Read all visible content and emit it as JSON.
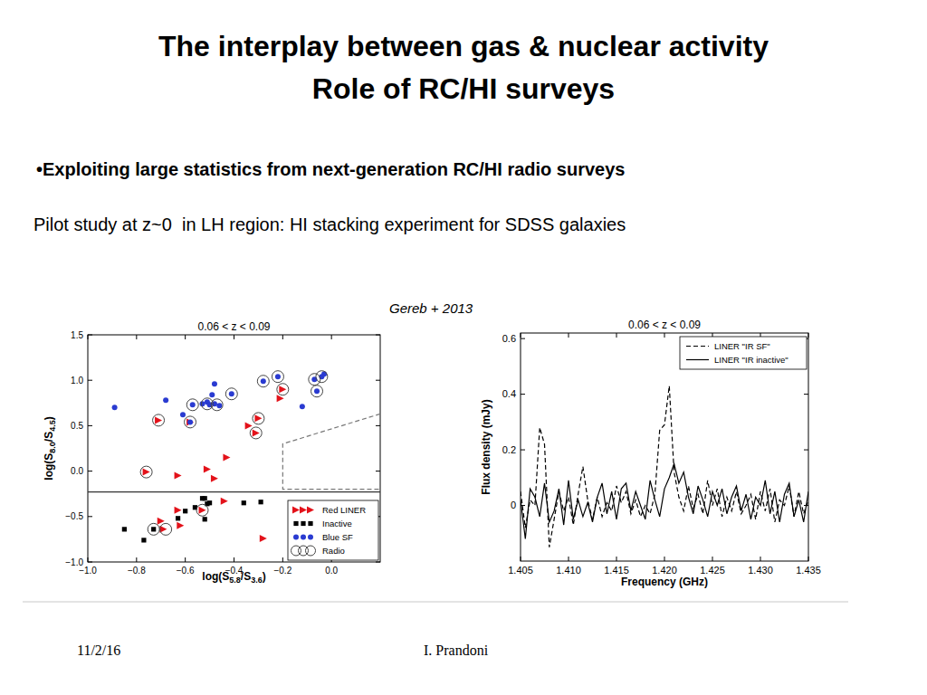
{
  "slide": {
    "title": [
      "The interplay between gas & nuclear activity",
      "Role of RC/HI surveys"
    ],
    "bullet": "•Exploiting large statistics from next-generation RC/HI radio surveys",
    "text": "Pilot study at z~0  in LH region: HI stacking experiment for SDSS galaxies",
    "citation": "Gereb + 2013",
    "footer": {
      "date": "11/2/16",
      "author": "I. Prandoni"
    }
  },
  "chart_data": [
    {
      "type": "scatter",
      "title": "0.06 < z < 0.09",
      "x_label": "log(S5.8/S3.6)",
      "y_label": "log(S8.0/S4.5)",
      "xlim": [
        -1.0,
        0.2
      ],
      "ylim": [
        -1.0,
        1.5
      ],
      "xticks": [
        {
          "value": -1.0,
          "label": "−1.0"
        },
        {
          "value": -0.8,
          "label": "−0.8"
        },
        {
          "value": -0.6,
          "label": "−0.6"
        },
        {
          "value": -0.4,
          "label": "−0.4"
        },
        {
          "value": -0.2,
          "label": "−0.2"
        },
        {
          "value": 0,
          "label": "0.0"
        }
      ],
      "yticks": [
        {
          "value": -1.0,
          "label": "−1.0"
        },
        {
          "value": -0.5,
          "label": "−0.5"
        },
        {
          "value": 0,
          "label": "0.0"
        },
        0.5,
        {
          "value": 1.0,
          "label": "1.0"
        },
        1.5
      ],
      "legend": "lower right",
      "grid": false,
      "series": [
        {
          "name": "Red LINER",
          "color": "#e3121a",
          "marker": "triangle_right",
          "x": [
            -0.71,
            -0.58,
            -0.76,
            -0.63,
            -0.51,
            -0.48,
            -0.43,
            -0.34,
            -0.3,
            -0.31,
            -0.2,
            -0.21,
            -0.63,
            -0.7,
            -0.69,
            -0.62,
            -0.28,
            -0.44,
            -0.53
          ],
          "y": [
            0.56,
            0.54,
            -0.01,
            -0.05,
            0.02,
            -0.08,
            0.15,
            0.5,
            0.58,
            0.42,
            0.9,
            0.8,
            -0.43,
            -0.55,
            -0.64,
            -0.6,
            -0.74,
            -0.33,
            -0.43
          ]
        },
        {
          "name": "Inactive",
          "color": "#000000",
          "marker": "square",
          "x": [
            -0.85,
            -0.77,
            -0.63,
            -0.6,
            -0.56,
            -0.53,
            -0.52,
            -0.51,
            -0.5,
            -0.52,
            -0.36,
            -0.29,
            -0.73
          ],
          "y": [
            -0.64,
            -0.76,
            -0.52,
            -0.44,
            -0.4,
            -0.3,
            -0.3,
            -0.36,
            -0.35,
            -0.53,
            -0.35,
            -0.34,
            -0.64
          ]
        },
        {
          "name": "Blue SF",
          "color": "#2a3bd1",
          "marker": "circle",
          "x": [
            -0.89,
            -0.68,
            -0.61,
            -0.57,
            -0.53,
            -0.51,
            -0.5,
            -0.48,
            -0.48,
            -0.49,
            -0.41,
            -0.28,
            -0.22,
            -0.12,
            -0.07,
            -0.06,
            -0.04,
            -0.03,
            -0.46,
            -0.58
          ],
          "y": [
            0.7,
            0.78,
            0.62,
            0.73,
            0.74,
            0.76,
            0.73,
            0.96,
            0.74,
            0.84,
            0.85,
            0.99,
            1.04,
            0.71,
            1.01,
            0.88,
            1.04,
            1.07,
            0.72,
            0.54
          ]
        },
        {
          "name": "Radio",
          "color": "#444444",
          "marker": "open_circle",
          "x": [
            -0.71,
            -0.58,
            -0.76,
            -0.73,
            -0.68,
            -0.57,
            -0.47,
            -0.41,
            -0.3,
            -0.31,
            -0.2,
            -0.28,
            -0.22,
            -0.07,
            -0.06,
            -0.04,
            -0.53,
            -0.51
          ],
          "y": [
            0.56,
            0.54,
            -0.01,
            -0.64,
            -0.64,
            0.73,
            0.73,
            0.85,
            0.58,
            0.42,
            0.9,
            0.99,
            1.04,
            1.01,
            0.88,
            1.04,
            -0.43,
            0.74
          ]
        }
      ],
      "lines": [
        {
          "x": [
            -1.0,
            0.2
          ],
          "y": [
            -0.23,
            -0.23
          ],
          "color": "#333333",
          "line_style": "solid"
        },
        {
          "x": [
            0.2,
            -0.2,
            -0.2,
            0.2
          ],
          "y": [
            0.63,
            0.3,
            -0.2,
            -0.2
          ],
          "color": "#777777",
          "line_style": "dashed"
        }
      ]
    },
    {
      "type": "line",
      "title": "0.06 < z < 0.09",
      "x_label": "Frequency (GHz)",
      "y_label": "Flux density (mJy)",
      "xlim": [
        1.405,
        1.435
      ],
      "ylim": [
        -0.2,
        0.62
      ],
      "xticks": [
        1.405,
        {
          "value": 1.41,
          "label": "1.410"
        },
        1.415,
        {
          "value": 1.42,
          "label": "1.420"
        },
        1.425,
        {
          "value": 1.43,
          "label": "1.430"
        },
        1.435
      ],
      "yticks": [
        0,
        0.2,
        0.4,
        0.6
      ],
      "legend": "upper right",
      "grid": false,
      "x": [
        1.405,
        1.4055,
        1.406,
        1.4065,
        1.407,
        1.4075,
        1.408,
        1.4085,
        1.409,
        1.4095,
        1.41,
        1.4105,
        1.411,
        1.4115,
        1.412,
        1.4125,
        1.413,
        1.4135,
        1.414,
        1.4145,
        1.415,
        1.4155,
        1.416,
        1.4165,
        1.417,
        1.4175,
        1.418,
        1.4185,
        1.419,
        1.4195,
        1.42,
        1.4205,
        1.421,
        1.4215,
        1.422,
        1.4225,
        1.423,
        1.4235,
        1.424,
        1.4245,
        1.425,
        1.4255,
        1.426,
        1.4265,
        1.427,
        1.4275,
        1.428,
        1.4285,
        1.429,
        1.4295,
        1.43,
        1.4305,
        1.431,
        1.4315,
        1.432,
        1.4325,
        1.433,
        1.4335,
        1.434,
        1.4345,
        1.435
      ],
      "series": [
        {
          "name": "LINER \"IR SF\"",
          "color": "#000000",
          "line_style": "dashed",
          "values": [
            0.05,
            -0.08,
            0.02,
            0.0,
            0.28,
            0.22,
            -0.15,
            -0.05,
            0.05,
            -0.02,
            0.03,
            -0.07,
            0.04,
            0.14,
            0.02,
            -0.05,
            0.03,
            -0.04,
            0.01,
            -0.02,
            0.07,
            0.01,
            0.05,
            -0.03,
            0.02,
            -0.04,
            0.0,
            -0.03,
            0.04,
            0.27,
            0.29,
            0.43,
            0.12,
            0.03,
            -0.02,
            0.07,
            -0.01,
            0.04,
            -0.03,
            0.09,
            0.0,
            0.06,
            -0.04,
            0.03,
            -0.02,
            0.05,
            -0.03,
            0.0,
            0.04,
            -0.05,
            0.05,
            -0.02,
            0.06,
            -0.06,
            0.02,
            0.0,
            0.07,
            -0.04,
            0.05,
            -0.03,
            0.02
          ]
        },
        {
          "name": "LINER \"IR inactive\"",
          "color": "#000000",
          "line_style": "solid",
          "values": [
            0.02,
            -0.12,
            0.06,
            0.03,
            -0.04,
            0.08,
            -0.06,
            -0.02,
            0.06,
            -0.07,
            0.09,
            -0.05,
            0.02,
            -0.04,
            0.01,
            -0.06,
            0.03,
            0.08,
            -0.03,
            0.05,
            -0.05,
            0.06,
            0.08,
            -0.02,
            0.05,
            0.0,
            -0.05,
            0.09,
            0.02,
            -0.04,
            0.06,
            0.1,
            0.15,
            0.08,
            0.12,
            0.03,
            -0.03,
            0.07,
            0.02,
            -0.04,
            0.05,
            0.0,
            0.06,
            -0.03,
            0.03,
            0.07,
            -0.02,
            0.04,
            -0.05,
            0.03,
            0.0,
            0.09,
            -0.03,
            0.05,
            -0.06,
            0.04,
            0.08,
            -0.04,
            0.02,
            -0.06,
            0.05
          ]
        }
      ]
    }
  ]
}
